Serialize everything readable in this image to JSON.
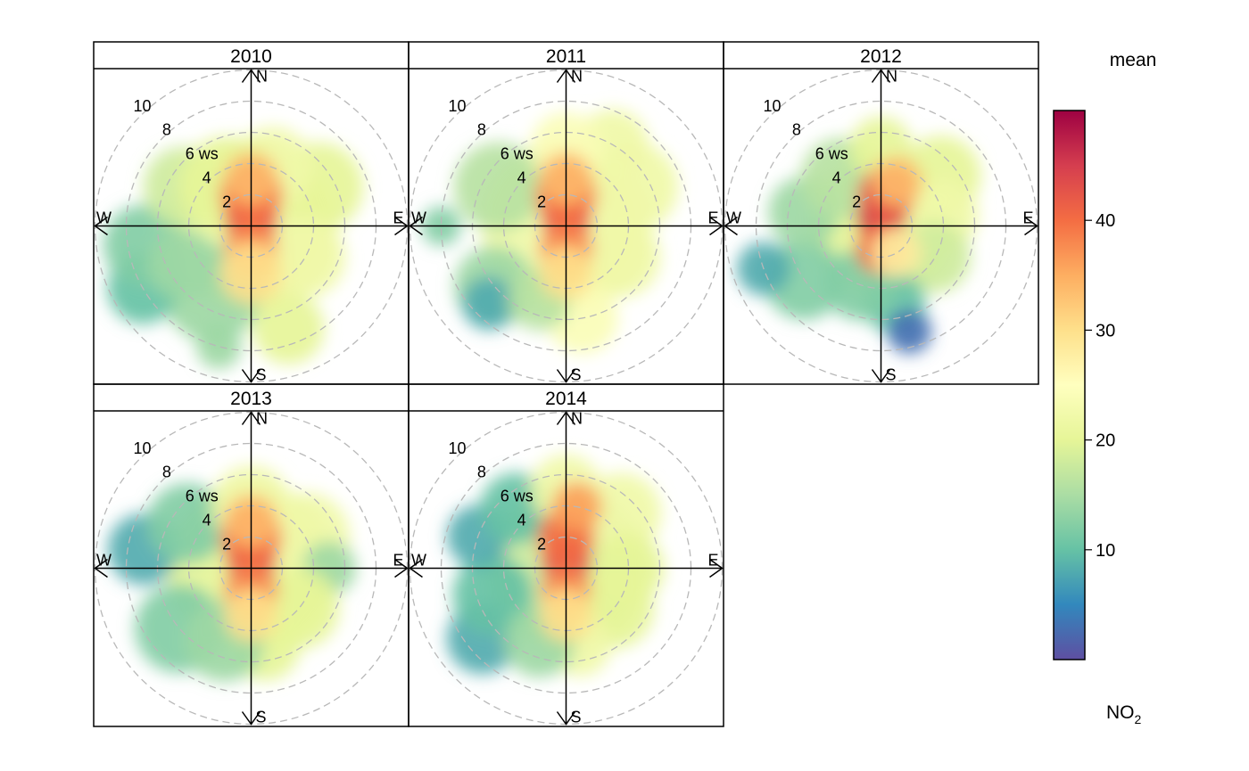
{
  "chart_data": {
    "type": "heatmap",
    "subtype": "polar-plot",
    "layout": "3x2 facet grid",
    "panels": [
      {
        "label": "2010"
      },
      {
        "label": "2011"
      },
      {
        "label": "2012"
      },
      {
        "label": "2013"
      },
      {
        "label": "2014"
      }
    ],
    "radial_axis": {
      "ring_values": [
        2,
        4,
        6,
        8,
        10
      ],
      "ring_labels": [
        "2",
        "4",
        "6 ws",
        "8",
        "10"
      ],
      "max": 10
    },
    "compass": {
      "N": "N",
      "E": "E",
      "S": "S",
      "W": "W"
    },
    "colorbar": {
      "title_top": "mean",
      "title_bottom_main": "NO",
      "title_bottom_sub": "2",
      "range": [
        0,
        50
      ],
      "ticks": [
        10,
        20,
        30,
        40
      ],
      "tick_labels": [
        "10",
        "20",
        "30",
        "40"
      ],
      "colors": [
        "#5E4FA2",
        "#3288BD",
        "#66C2A5",
        "#ABDDA4",
        "#E6F598",
        "#FFFFBF",
        "#FEE08B",
        "#FDAE61",
        "#F46D43",
        "#D53E4F",
        "#9E0142"
      ]
    }
  }
}
